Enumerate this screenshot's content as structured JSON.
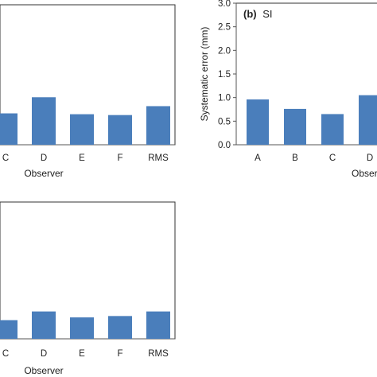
{
  "bar_color": "#4a7ebb",
  "chart_data": [
    {
      "type": "bar",
      "title": "",
      "categories": [
        "C",
        "D",
        "E",
        "F",
        "RMS"
      ],
      "values": [
        0.74,
        1.12,
        0.72,
        0.7,
        0.91
      ],
      "xlabel": "Observer",
      "ylabel": "",
      "ylim": [
        0,
        3.0
      ],
      "grid": false,
      "partial": "left edge cropped; categories A, B and y axis not visible"
    },
    {
      "type": "bar",
      "title_tag": "(b)",
      "title_text": "SI",
      "categories": [
        "A",
        "B",
        "C",
        "D"
      ],
      "values": [
        0.96,
        0.76,
        0.65,
        1.05
      ],
      "xlabel": "Observer",
      "ylabel": "Systematic error (mm)",
      "ylim": [
        0,
        3.0
      ],
      "yticks": [
        "0.0",
        "0.5",
        "1.0",
        "1.5",
        "2.0",
        "2.5",
        "3.0"
      ],
      "grid": false,
      "partial": "right edge cropped after D"
    },
    {
      "type": "bar",
      "title": "",
      "categories": [
        "C",
        "D",
        "E",
        "F",
        "RMS"
      ],
      "values": [
        0.41,
        0.6,
        0.47,
        0.5,
        0.6
      ],
      "xlabel": "Observer",
      "ylabel": "",
      "ylim": [
        0,
        3.0
      ],
      "grid": false,
      "partial": "left and bottom edges cropped"
    }
  ]
}
